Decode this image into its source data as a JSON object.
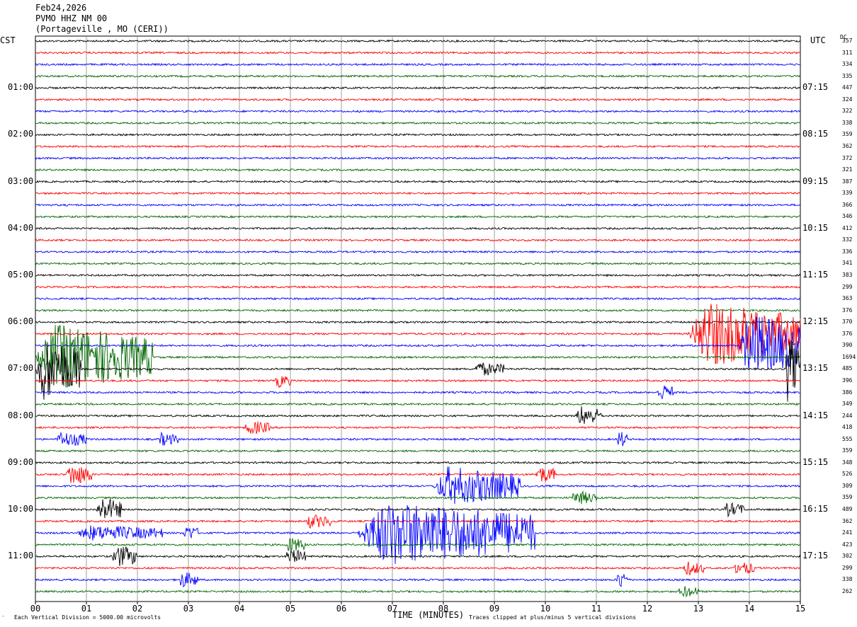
{
  "header": {
    "date": "Feb24,2026",
    "station": "PVMO HHZ NM 00",
    "location": "(Portageville , MO (CERI))"
  },
  "axes": {
    "left_timezone": "CST",
    "right_timezone": "UTC",
    "dc_label": "DC",
    "x_title": "TIME (MINUTES)",
    "footer_left": "Each Vertical Division = 5000.00 microvolts",
    "footer_right": "Traces clipped at plus/minus 5 vertical divisions",
    "footer_mark": "‵"
  },
  "chart_data": {
    "type": "helicorder",
    "x_range": [
      0,
      15
    ],
    "x_ticks": [
      "00",
      "01",
      "02",
      "03",
      "04",
      "05",
      "06",
      "07",
      "08",
      "09",
      "10",
      "11",
      "12",
      "13",
      "14",
      "15"
    ],
    "line_minutes": 15,
    "trace_colors": [
      "#000000",
      "#ff0000",
      "#0000ff",
      "#006600"
    ],
    "cst_hour_labels": [
      "01:00",
      "02:00",
      "03:00",
      "04:00",
      "05:00",
      "06:00",
      "07:00",
      "08:00",
      "09:00",
      "10:00",
      "11:00"
    ],
    "utc_labels": [
      "07:15",
      "08:15",
      "09:15",
      "10:15",
      "11:15",
      "12:15",
      "13:15",
      "14:15",
      "15:15",
      "16:15",
      "17:15"
    ],
    "dc_values": [
      "357",
      "311",
      "334",
      "335",
      "447",
      "324",
      "322",
      "338",
      "359",
      "362",
      "372",
      "321",
      "387",
      "339",
      "366",
      "346",
      "412",
      "332",
      "336",
      "341",
      "383",
      "299",
      "363",
      "376",
      "370",
      "376",
      "390",
      "1694",
      "485",
      "396",
      "386",
      "349",
      "244",
      "418",
      "555",
      "359",
      "348",
      "526",
      "309",
      "359",
      "489",
      "362",
      "241",
      "423",
      "302",
      "299",
      "338",
      "262"
    ],
    "events": [
      {
        "line": 25,
        "start_min": 12.8,
        "end_min": 15.0,
        "amplitude": 6
      },
      {
        "line": 26,
        "start_min": 13.8,
        "end_min": 15.0,
        "amplitude": 6
      },
      {
        "line": 27,
        "start_min": 0.0,
        "end_min": 2.3,
        "amplitude": 6
      },
      {
        "line": 28,
        "start_min": 0.0,
        "end_min": 0.9,
        "amplitude": 6
      },
      {
        "line": 28,
        "start_min": 14.7,
        "end_min": 15.0,
        "amplitude": 6
      },
      {
        "line": 28,
        "start_min": 8.6,
        "end_min": 9.2,
        "amplitude": 1.2
      },
      {
        "line": 29,
        "start_min": 4.7,
        "end_min": 5.0,
        "amplitude": 1.2
      },
      {
        "line": 30,
        "start_min": 12.2,
        "end_min": 12.5,
        "amplitude": 1.5
      },
      {
        "line": 32,
        "start_min": 10.6,
        "end_min": 11.1,
        "amplitude": 1.8
      },
      {
        "line": 33,
        "start_min": 4.1,
        "end_min": 4.6,
        "amplitude": 1.2
      },
      {
        "line": 34,
        "start_min": 0.4,
        "end_min": 1.0,
        "amplitude": 1.3
      },
      {
        "line": 34,
        "start_min": 2.4,
        "end_min": 2.8,
        "amplitude": 1.1
      },
      {
        "line": 34,
        "start_min": 11.4,
        "end_min": 11.6,
        "amplitude": 1.5
      },
      {
        "line": 37,
        "start_min": 0.6,
        "end_min": 1.1,
        "amplitude": 2.0
      },
      {
        "line": 37,
        "start_min": 9.8,
        "end_min": 10.2,
        "amplitude": 1.5
      },
      {
        "line": 38,
        "start_min": 7.8,
        "end_min": 9.5,
        "amplitude": 3.5
      },
      {
        "line": 39,
        "start_min": 10.5,
        "end_min": 11.0,
        "amplitude": 1.2
      },
      {
        "line": 40,
        "start_min": 1.2,
        "end_min": 1.7,
        "amplitude": 2.2
      },
      {
        "line": 40,
        "start_min": 13.5,
        "end_min": 13.9,
        "amplitude": 1.2
      },
      {
        "line": 41,
        "start_min": 5.3,
        "end_min": 5.8,
        "amplitude": 1.2
      },
      {
        "line": 42,
        "start_min": 6.3,
        "end_min": 9.8,
        "amplitude": 6
      },
      {
        "line": 42,
        "start_min": 0.8,
        "end_min": 2.5,
        "amplitude": 1.3
      },
      {
        "line": 42,
        "start_min": 2.9,
        "end_min": 3.2,
        "amplitude": 1.3
      },
      {
        "line": 43,
        "start_min": 4.9,
        "end_min": 5.3,
        "amplitude": 1.3
      },
      {
        "line": 44,
        "start_min": 1.5,
        "end_min": 2.0,
        "amplitude": 2.0
      },
      {
        "line": 44,
        "start_min": 4.9,
        "end_min": 5.3,
        "amplitude": 1.3
      },
      {
        "line": 45,
        "start_min": 12.7,
        "end_min": 13.1,
        "amplitude": 1.2
      },
      {
        "line": 45,
        "start_min": 13.7,
        "end_min": 14.1,
        "amplitude": 1.2
      },
      {
        "line": 46,
        "start_min": 2.8,
        "end_min": 3.2,
        "amplitude": 1.4
      },
      {
        "line": 46,
        "start_min": 11.4,
        "end_min": 11.6,
        "amplitude": 1.8
      },
      {
        "line": 47,
        "start_min": 12.6,
        "end_min": 13.0,
        "amplitude": 1.0
      }
    ]
  }
}
